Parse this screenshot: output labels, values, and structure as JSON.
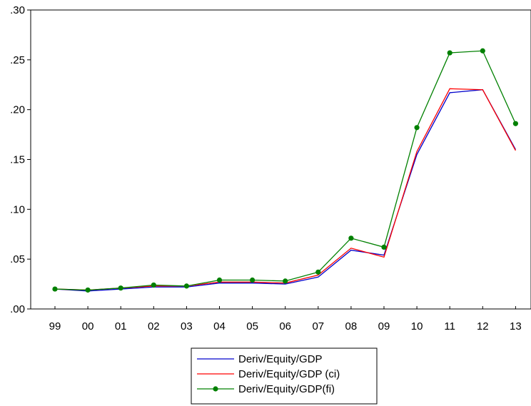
{
  "chart_data": {
    "type": "line",
    "title": "",
    "xlabel": "",
    "ylabel": "",
    "categories": [
      "99",
      "00",
      "01",
      "02",
      "03",
      "04",
      "05",
      "06",
      "07",
      "08",
      "09",
      "10",
      "11",
      "12",
      "13"
    ],
    "ylim": [
      0,
      0.3
    ],
    "yticks": [
      ".00",
      ".05",
      ".10",
      ".15",
      ".20",
      ".25",
      ".30"
    ],
    "grid": false,
    "legend_position": "bottom",
    "series": [
      {
        "name": "Deriv/Equity/GDP",
        "color": "#0000cc",
        "marker": "none",
        "values": [
          0.02,
          0.018,
          0.02,
          0.022,
          0.022,
          0.026,
          0.026,
          0.025,
          0.032,
          0.059,
          0.054,
          0.155,
          0.217,
          0.22,
          0.16
        ]
      },
      {
        "name": "Deriv/Equity/GDP (ci)",
        "color": "#ff0000",
        "marker": "none",
        "values": [
          0.02,
          0.019,
          0.021,
          0.023,
          0.023,
          0.027,
          0.027,
          0.026,
          0.034,
          0.061,
          0.052,
          0.158,
          0.221,
          0.22,
          0.159
        ]
      },
      {
        "name": "Deriv/Equity/GDP(fi)",
        "color": "#008000",
        "marker": "circle",
        "values": [
          0.02,
          0.019,
          0.021,
          0.024,
          0.023,
          0.029,
          0.029,
          0.028,
          0.037,
          0.071,
          0.062,
          0.182,
          0.257,
          0.259,
          0.186
        ]
      }
    ]
  }
}
